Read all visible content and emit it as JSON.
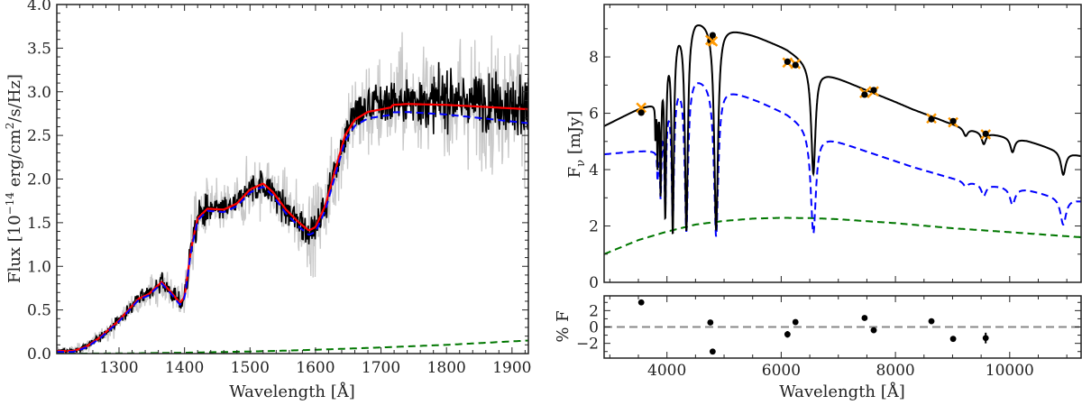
{
  "chart_data": [
    {
      "type": "line",
      "xlabel": "Wavelength [Å]",
      "ylabel": {
        "pre": "Flux [10",
        "exp1": "−14",
        "mid": " erg/cm",
        "exp2": "2",
        "post": "/s/Hz]"
      },
      "xlim": [
        1205,
        1925
      ],
      "ylim": [
        0,
        4.0
      ],
      "xticks": [
        1300,
        1400,
        1500,
        1600,
        1700,
        1800,
        1900
      ],
      "xtick_labels": [
        "1300",
        "1400",
        "1500",
        "1600",
        "1700",
        "1800",
        "1900"
      ],
      "yticks": [
        0,
        0.5,
        1.0,
        1.5,
        2.0,
        2.5,
        3.0,
        3.5,
        4.0
      ],
      "ytick_labels": [
        "0.0",
        "0.5",
        "1.0",
        "1.5",
        "2.0",
        "2.5",
        "3.0",
        "3.5",
        "4.0"
      ],
      "grid": false,
      "colors": {
        "observed": "#000000",
        "observed_raw": "#c8c8c8",
        "total_model": "#ff0000",
        "component_1": "#0000ff",
        "component_2": "#007700"
      },
      "series": [
        {
          "style": "solid-red",
          "x": [
            1205,
            1230,
            1250,
            1270,
            1300,
            1330,
            1345,
            1365,
            1380,
            1393,
            1400,
            1410,
            1420,
            1435,
            1460,
            1480,
            1500,
            1520,
            1535,
            1555,
            1575,
            1590,
            1600,
            1615,
            1630,
            1645,
            1660,
            1680,
            1715,
            1718,
            1740,
            1800,
            1925
          ],
          "y": [
            0.03,
            0.03,
            0.08,
            0.18,
            0.38,
            0.63,
            0.68,
            0.82,
            0.7,
            0.58,
            0.65,
            1.2,
            1.55,
            1.66,
            1.65,
            1.72,
            1.88,
            1.95,
            1.85,
            1.65,
            1.5,
            1.41,
            1.45,
            1.7,
            2.1,
            2.5,
            2.68,
            2.77,
            2.82,
            2.85,
            2.86,
            2.85,
            2.8
          ]
        },
        {
          "style": "dashed-blue",
          "relation": "total minus green component"
        },
        {
          "style": "dashed-green",
          "x": [
            1205,
            1230,
            1300,
            1400,
            1500,
            1550,
            1600,
            1700,
            1800,
            1925
          ],
          "y": [
            0.0,
            0.0,
            0.002,
            0.01,
            0.024,
            0.033,
            0.044,
            0.07,
            0.1,
            0.15
          ]
        },
        {
          "style": "observed-spectrum",
          "relation": "noisy data scattered around the red model, noise increasing with wavelength"
        }
      ]
    },
    {
      "type": "line",
      "xlabel": "Wavelength [Å]",
      "ylabel": {
        "main": "F",
        "sub": "ν",
        "unit": " [mJy]"
      },
      "xlim": [
        2900,
        11250
      ],
      "ylim": [
        0,
        9.86
      ],
      "xticks": [
        4000,
        6000,
        8000,
        10000
      ],
      "xtick_labels": [
        "4000",
        "6000",
        "8000",
        "10000"
      ],
      "yticks": [
        0,
        2,
        4,
        6,
        8
      ],
      "ytick_labels": [
        "0",
        "2",
        "4",
        "6",
        "8"
      ],
      "grid": false,
      "colors": {
        "total": "#000000",
        "component_1": "#0000ff",
        "component_2": "#007700",
        "model_phot": "#ff9900",
        "observed": "#000000"
      },
      "series": [
        {
          "style": "dashed-blue",
          "continuum": {
            "x": [
              2900,
              3400,
              3700,
              3850,
              3950,
              4200,
              4500,
              4800,
              5050,
              5600,
              6100,
              6750,
              7500,
              8300,
              8900,
              9200,
              9700,
              10300,
              10700,
              11250
            ],
            "y": [
              4.55,
              4.65,
              4.7,
              4.72,
              6.4,
              7.2,
              7.4,
              7.15,
              6.9,
              6.45,
              6.0,
              5.2,
              4.65,
              4.1,
              3.75,
              3.6,
              3.45,
              3.3,
              3.1,
              2.9
            ]
          },
          "lines": [
            [
              6563,
              0.68,
              55
            ],
            [
              4861,
              0.77,
              45
            ],
            [
              4340,
              0.75,
              35
            ],
            [
              4102,
              0.68,
              25
            ],
            [
              3970,
              0.58,
              20
            ],
            [
              3889,
              0.42,
              15
            ],
            [
              3835,
              0.2,
              8
            ],
            [
              9229,
              0.05,
              50
            ],
            [
              9546,
              0.12,
              50
            ],
            [
              10049,
              0.18,
              55
            ],
            [
              10938,
              0.32,
              60
            ]
          ]
        },
        {
          "style": "solid-black",
          "relation": "continuum = blue continuum + green",
          "lines": [
            [
              6563,
              0.5,
              45
            ],
            [
              4861,
              0.8,
              40
            ],
            [
              4340,
              0.8,
              30
            ],
            [
              4102,
              0.8,
              22
            ],
            [
              3970,
              0.72,
              18
            ],
            [
              3889,
              0.55,
              12
            ],
            [
              3835,
              0.35,
              8
            ],
            [
              3798,
              0.2,
              6
            ],
            [
              9229,
              0.05,
              45
            ],
            [
              9546,
              0.08,
              45
            ],
            [
              10049,
              0.1,
              45
            ],
            [
              10938,
              0.18,
              50
            ]
          ]
        },
        {
          "style": "dashed-green",
          "x": [
            2900,
            3500,
            4000,
            4500,
            5000,
            5500,
            6000,
            6500,
            7000,
            8000,
            9000,
            10000,
            11250
          ],
          "y": [
            1.0,
            1.5,
            1.8,
            2.05,
            2.18,
            2.26,
            2.29,
            2.28,
            2.24,
            2.1,
            1.92,
            1.78,
            1.6
          ]
        }
      ],
      "photometry": {
        "wavelength": [
          3550,
          4760,
          4800,
          6110,
          6250,
          7460,
          7620,
          8630,
          9010,
          9580
        ],
        "observed": [
          6.02,
          8.58,
          8.77,
          7.83,
          7.71,
          6.66,
          6.82,
          5.79,
          5.72,
          5.27
        ],
        "model": [
          6.2,
          8.6,
          8.55,
          7.8,
          7.75,
          6.72,
          6.78,
          5.82,
          5.68,
          5.25
        ]
      }
    },
    {
      "type": "scatter",
      "xlabel": "Wavelength [Å]",
      "ylabel": "% F",
      "xlim": [
        2900,
        11250
      ],
      "ylim": [
        -3.8,
        3.8
      ],
      "yticks": [
        -2,
        0,
        2
      ],
      "ytick_labels": [
        "−2",
        "0",
        "2"
      ],
      "reference_line": 0,
      "x": [
        3550,
        4760,
        4800,
        6110,
        6250,
        7460,
        7620,
        8630,
        9010,
        9580
      ],
      "y": [
        3.0,
        0.55,
        -3.0,
        -0.9,
        0.6,
        1.1,
        -0.4,
        0.7,
        -1.45,
        -1.35
      ],
      "yerr": [
        0.2,
        0.2,
        0.2,
        0.4,
        0.2,
        0.3,
        0.2,
        0.2,
        0.2,
        0.65
      ]
    }
  ]
}
